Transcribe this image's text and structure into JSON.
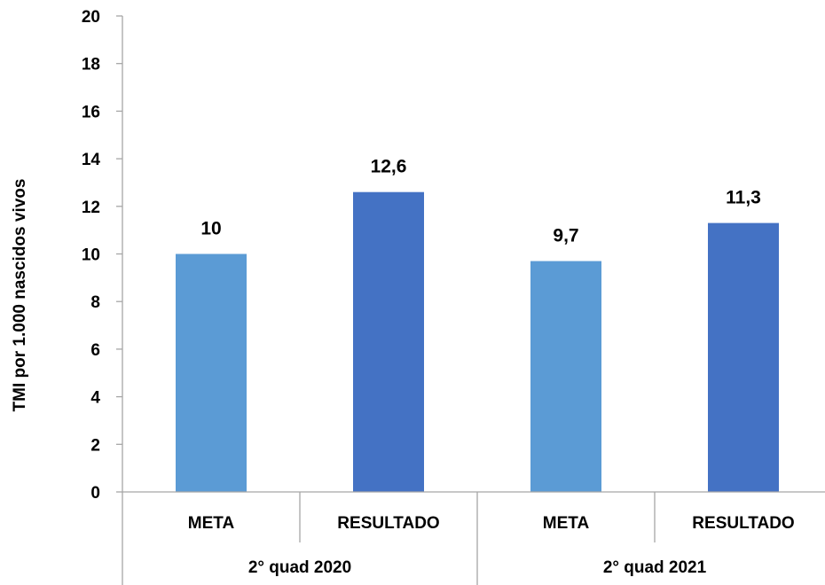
{
  "chart_data": {
    "type": "bar",
    "ylabel": "TMI por 1.000 nascidos vivos",
    "ylim": [
      0,
      20
    ],
    "yticks": [
      "0",
      "2",
      "4",
      "6",
      "8",
      "10",
      "12",
      "14",
      "16",
      "18",
      "20"
    ],
    "groups": [
      "2° quad 2020",
      "2° quad 2021"
    ],
    "categories": [
      "META",
      "RESULTADO",
      "META",
      "RESULTADO"
    ],
    "values": [
      10,
      12.6,
      9.7,
      11.3
    ],
    "data_labels": [
      "10",
      "12,6",
      "9,7",
      "11,3"
    ],
    "colors": [
      "#5B9BD5",
      "#4472C4",
      "#5B9BD5",
      "#4472C4"
    ],
    "grid": false,
    "legend": "none"
  }
}
